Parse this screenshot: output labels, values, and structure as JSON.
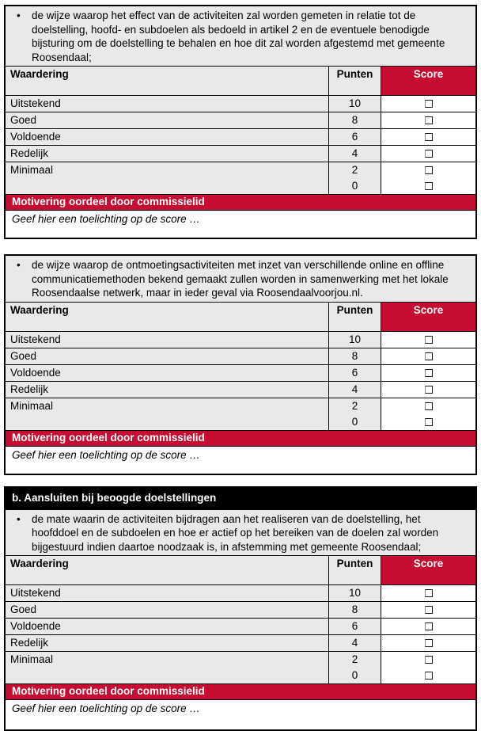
{
  "colors": {
    "accent_red": "#c60c30",
    "heading_black": "#000000",
    "cell_gray": "#e9e9e9"
  },
  "bullet_char": "•",
  "rating_scale": {
    "headers": {
      "waardering": "Waardering",
      "punten": "Punten",
      "score": "Score"
    },
    "rows": [
      {
        "label": "Uitstekend",
        "points": [
          "10"
        ]
      },
      {
        "label": "Goed",
        "points": [
          "8"
        ]
      },
      {
        "label": "Voldoende",
        "points": [
          "6"
        ]
      },
      {
        "label": "Redelijk",
        "points": [
          "4"
        ]
      },
      {
        "label": "Minimaal",
        "points": [
          "2",
          "0"
        ]
      }
    ],
    "motivering_label": "Motivering oordeel door commissielid",
    "toelichting_placeholder": "Geef hier een toelichting op de score …"
  },
  "sections": [
    {
      "bullet": "de wijze waarop het effect van de activiteiten zal worden gemeten in relatie tot de doelstelling, hoofd- en subdoelen als bedoeld in artikel 2 en de eventuele benodigde bijsturing om de doelstelling te behalen en hoe dit zal worden afgestemd met gemeente Roosendaal;"
    },
    {
      "bullet": "de wijze waarop de ontmoetingsactiviteiten met inzet van verschillende online en offline communicatiemethoden bekend gemaakt zullen worden in samenwerking met het lokale Roosendaalse netwerk, maar in ieder geval via Roosendaalvoorjou.nl."
    },
    {
      "heading": "b. Aansluiten bij beoogde doelstellingen",
      "bullet": "de mate waarin de activiteiten bijdragen aan het realiseren van de doelstelling, het hoofddoel en de subdoelen en hoe er actief op het bereiken van de doelen zal worden bijgestuurd indien daartoe noodzaak is, in afstemming met gemeente Roosendaal;"
    }
  ]
}
